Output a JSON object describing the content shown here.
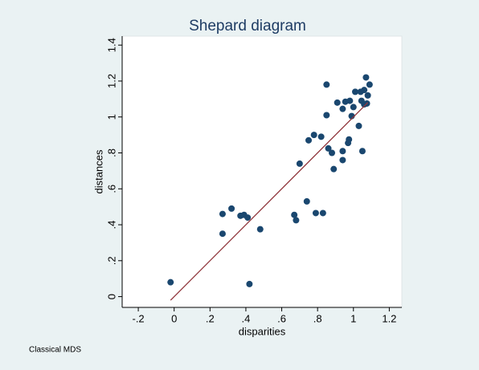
{
  "chart_data": {
    "type": "scatter",
    "title": "Shepard diagram",
    "xlabel": "disparities",
    "ylabel": "distances",
    "note": "Classical MDS",
    "color": "#1a476f",
    "x": [
      -0.02,
      0.27,
      0.27,
      0.32,
      0.37,
      0.39,
      0.41,
      0.42,
      0.48,
      0.67,
      0.68,
      0.7,
      0.74,
      0.75,
      0.78,
      0.79,
      0.82,
      0.83,
      0.85,
      0.85,
      0.86,
      0.88,
      0.89,
      0.91,
      0.94,
      0.94,
      0.94,
      0.955,
      0.97,
      0.975,
      0.98,
      0.99,
      1.0,
      1.01,
      1.03,
      1.04,
      1.045,
      1.05,
      1.06,
      1.06,
      1.07,
      1.075,
      1.08,
      1.09
    ],
    "y": [
      0.08,
      0.46,
      0.35,
      0.49,
      0.45,
      0.455,
      0.44,
      0.07,
      0.375,
      0.455,
      0.425,
      0.74,
      0.53,
      0.87,
      0.9,
      0.465,
      0.89,
      0.465,
      1.18,
      1.01,
      0.825,
      0.8,
      0.71,
      1.08,
      1.045,
      0.76,
      0.81,
      1.085,
      0.855,
      0.875,
      1.09,
      1.005,
      1.055,
      1.14,
      0.95,
      1.14,
      1.09,
      0.81,
      1.07,
      1.15,
      1.22,
      1.075,
      1.12,
      1.18
    ],
    "fit_line": {
      "x": [
        -0.02,
        1.08
      ],
      "y": [
        -0.02,
        1.08
      ],
      "color": "#90353b"
    },
    "xlim": [
      -0.29,
      1.27
    ],
    "ylim": [
      -0.06,
      1.45
    ],
    "xticks": [
      {
        "value": -0.2,
        "label": "-.2"
      },
      0,
      {
        "value": 0.2,
        "label": ".2"
      },
      {
        "value": 0.4,
        "label": ".4"
      },
      {
        "value": 0.6,
        "label": ".6"
      },
      {
        "value": 0.8,
        "label": ".8"
      },
      1,
      {
        "value": 1.2,
        "label": "1.2"
      }
    ],
    "yticks": [
      0,
      {
        "value": 0.2,
        "label": ".2"
      },
      {
        "value": 0.4,
        "label": ".4"
      },
      {
        "value": 0.6,
        "label": ".6"
      },
      {
        "value": 0.8,
        "label": ".8"
      },
      1,
      {
        "value": 1.2,
        "label": "1.2"
      },
      {
        "value": 1.4,
        "label": "1.4"
      }
    ]
  }
}
